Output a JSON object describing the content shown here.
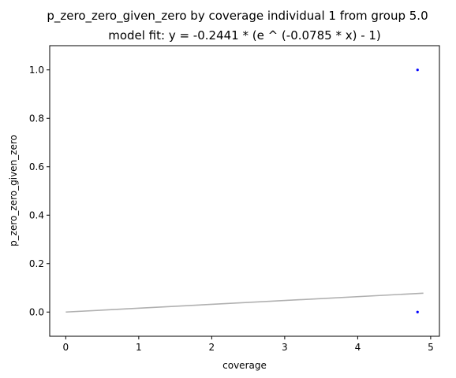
{
  "chart_data": {
    "type": "scatter",
    "title": "p_zero_zero_given_zero by coverage individual 1 from group 5.0",
    "subtitle": "model fit: y = -0.2441 * (e ^ (-0.0785 * x) - 1)",
    "xlabel": "coverage",
    "ylabel": "p_zero_zero_given_zero",
    "xlim": [
      -0.22,
      5.12
    ],
    "ylim": [
      -0.1,
      1.1
    ],
    "x_ticks": [
      0,
      1,
      2,
      3,
      4,
      5
    ],
    "x_tick_labels": [
      "0",
      "1",
      "2",
      "3",
      "4",
      "5"
    ],
    "y_ticks": [
      0.0,
      0.2,
      0.4,
      0.6,
      0.8,
      1.0
    ],
    "y_tick_labels": [
      "0.0",
      "0.2",
      "0.4",
      "0.6",
      "0.8",
      "1.0"
    ],
    "grid": false,
    "points": [
      {
        "x": 4.82,
        "y": 1.0
      },
      {
        "x": 4.82,
        "y": 0.0
      }
    ],
    "fit": {
      "a": -0.2441,
      "b": -0.0785,
      "x_range": [
        0,
        4.9
      ]
    },
    "colors": {
      "points": "#0000ff",
      "fit_line": "#b0b0b0",
      "axes": "#000000"
    }
  }
}
